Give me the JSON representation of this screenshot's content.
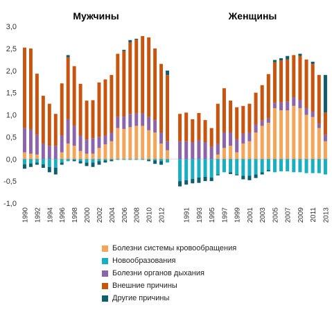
{
  "chart_data": {
    "type": "bar",
    "stacked": true,
    "ylim": [
      -1.0,
      3.0
    ],
    "yticks": [
      "-1,0",
      "-0,5",
      "0,0",
      "0,5",
      "1,0",
      "1,5",
      "2,0",
      "2,5",
      "3,0"
    ],
    "legend_placement": "bottom",
    "colors": {
      "circulatory": "#F5A55A",
      "neoplasms": "#1AAFBF",
      "respiratory": "#8C64AA",
      "external": "#C8550F",
      "other": "#0E5F6B"
    },
    "panels": [
      {
        "title": "Мужчины",
        "years": [
          1990,
          1991,
          1992,
          1993,
          1994,
          1995,
          1996,
          1997,
          1998,
          1999,
          2000,
          2001,
          2002,
          2003,
          2004,
          2005,
          2006,
          2007,
          2008,
          2009,
          2010,
          2011,
          2012,
          2013
        ],
        "x_tick_labels": [
          "1990",
          "1992",
          "1994",
          "1996",
          "1998",
          "2000",
          "2002",
          "2004",
          "2006",
          "2008",
          "2010",
          "2012"
        ],
        "series": [
          {
            "name": "Болезни системы кровообращения",
            "key": "circulatory",
            "values": [
              0.15,
              0.12,
              0.1,
              0.0,
              0.0,
              0.0,
              0.15,
              0.35,
              0.3,
              0.18,
              0.12,
              0.12,
              0.25,
              0.33,
              0.4,
              0.7,
              0.68,
              0.72,
              0.75,
              0.75,
              0.65,
              0.6,
              0.35,
              0.2
            ]
          },
          {
            "name": "Новообразования",
            "key": "neoplasms",
            "values": [
              -0.12,
              -0.1,
              -0.08,
              -0.12,
              -0.18,
              -0.2,
              -0.08,
              -0.05,
              -0.02,
              -0.05,
              -0.08,
              -0.08,
              -0.05,
              -0.03,
              -0.02,
              -0.02,
              -0.02,
              -0.02,
              -0.02,
              -0.02,
              -0.02,
              -0.03,
              -0.05,
              -0.08
            ]
          },
          {
            "name": "Болезни органов дыхания",
            "key": "respiratory",
            "values": [
              0.55,
              0.55,
              0.45,
              0.35,
              0.3,
              0.3,
              0.38,
              0.55,
              0.45,
              0.35,
              0.32,
              0.35,
              0.25,
              0.2,
              0.2,
              0.25,
              0.28,
              0.3,
              0.28,
              0.28,
              0.3,
              0.28,
              0.25,
              0.2
            ]
          },
          {
            "name": "Внешние причины",
            "key": "external",
            "values": [
              1.82,
              1.83,
              1.38,
              1.08,
              0.95,
              0.72,
              1.18,
              1.4,
              1.35,
              1.17,
              0.88,
              0.86,
              1.23,
              1.27,
              1.3,
              1.43,
              1.48,
              1.62,
              1.67,
              1.75,
              1.8,
              1.62,
              1.55,
              1.5
            ]
          },
          {
            "name": "Другие причины",
            "key": "other",
            "values": [
              -0.1,
              -0.08,
              -0.05,
              -0.08,
              -0.12,
              -0.15,
              -0.05,
              0.05,
              -0.03,
              -0.05,
              -0.08,
              -0.1,
              -0.08,
              -0.05,
              -0.03,
              0.0,
              0.03,
              0.05,
              0.02,
              0.0,
              -0.03,
              -0.08,
              -0.08,
              0.1
            ]
          }
        ]
      },
      {
        "title": "Женщины",
        "years": [
          1990,
          1991,
          1992,
          1993,
          1994,
          1995,
          1996,
          1997,
          1998,
          1999,
          2000,
          2001,
          2002,
          2003,
          2004,
          2005,
          2006,
          2007,
          2008,
          2009,
          2010,
          2011,
          2012,
          2013
        ],
        "x_tick_labels": [
          "1991",
          "1993",
          "1995",
          "1997",
          "1999",
          "2001",
          "2003",
          "2005",
          "2007",
          "2009",
          "2011",
          "2013"
        ],
        "series": [
          {
            "name": "Болезни системы кровообращения",
            "key": "circulatory",
            "values": [
              0.0,
              0.0,
              0.0,
              0.0,
              0.0,
              0.0,
              0.1,
              0.25,
              0.3,
              0.15,
              0.35,
              0.4,
              0.6,
              0.75,
              0.82,
              1.15,
              1.1,
              1.1,
              1.2,
              1.15,
              1.0,
              0.95,
              0.7,
              0.4
            ]
          },
          {
            "name": "Новообразования",
            "key": "neoplasms",
            "values": [
              -0.5,
              -0.48,
              -0.45,
              -0.42,
              -0.4,
              -0.42,
              -0.35,
              -0.3,
              -0.3,
              -0.35,
              -0.38,
              -0.38,
              -0.35,
              -0.3,
              -0.25,
              -0.3,
              -0.28,
              -0.28,
              -0.3,
              -0.3,
              -0.32,
              -0.32,
              -0.32,
              -0.35
            ]
          },
          {
            "name": "Болезни органов дыхания",
            "key": "respiratory",
            "values": [
              0.4,
              0.4,
              0.38,
              0.42,
              0.38,
              0.28,
              0.25,
              0.35,
              0.3,
              0.3,
              0.22,
              0.2,
              0.18,
              0.12,
              0.1,
              0.12,
              0.18,
              0.2,
              0.2,
              0.18,
              0.15,
              0.12,
              0.1,
              0.15
            ]
          },
          {
            "name": "Внешние причины",
            "key": "external",
            "values": [
              0.62,
              0.65,
              0.52,
              0.62,
              0.5,
              0.42,
              0.9,
              1.0,
              0.72,
              0.72,
              0.63,
              0.65,
              0.72,
              0.8,
              1.0,
              0.92,
              0.95,
              0.95,
              0.95,
              1.0,
              1.1,
              1.08,
              1.1,
              0.5
            ]
          },
          {
            "name": "Другие причины",
            "key": "other",
            "values": [
              -0.12,
              -0.1,
              -0.1,
              -0.12,
              -0.1,
              -0.08,
              -0.02,
              0.0,
              -0.04,
              -0.02,
              -0.08,
              -0.1,
              -0.08,
              -0.05,
              -0.03,
              0.05,
              0.05,
              0.08,
              0.0,
              0.05,
              0.0,
              0.05,
              0.0,
              0.85
            ]
          }
        ]
      }
    ],
    "legend": [
      {
        "label": "Болезни системы кровообращения",
        "key": "circulatory"
      },
      {
        "label": "Новообразования",
        "key": "neoplasms"
      },
      {
        "label": "Болезни органов дыхания",
        "key": "respiratory"
      },
      {
        "label": "Внешние причины",
        "key": "external"
      },
      {
        "label": "Другие причины",
        "key": "other"
      }
    ]
  }
}
